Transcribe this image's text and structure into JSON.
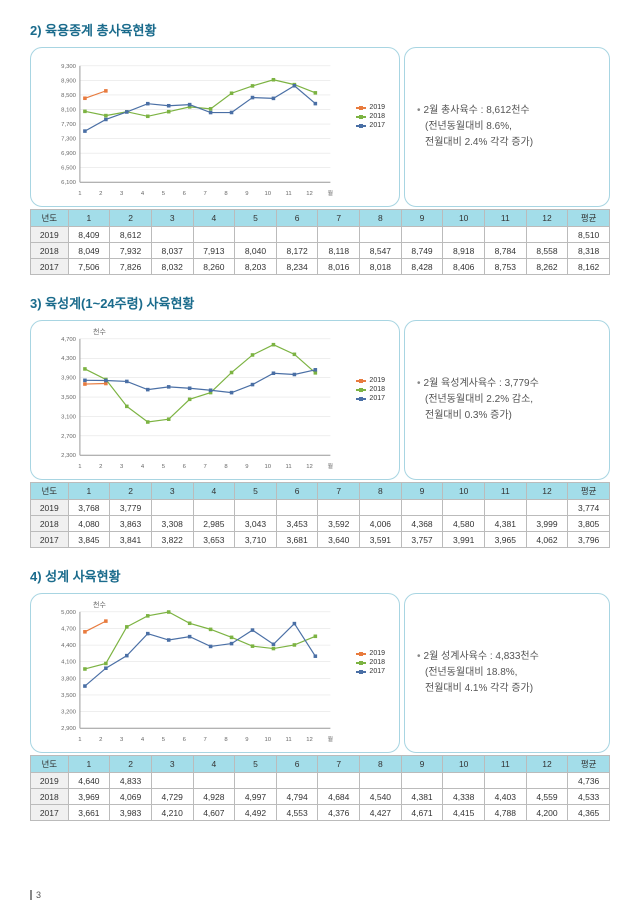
{
  "page_number": "3",
  "sections": [
    {
      "title": "2) 육용종계 총사육현황",
      "unit": "",
      "note": {
        "header": "2월 총사육수 : 8,612천수",
        "sub": "(전년동월대비 8.6%,\n전월대비 2.4% 각각 증가)"
      },
      "chart": {
        "ylim": [
          6100,
          9300
        ],
        "ystep": 400,
        "ylabels": [
          "6,100",
          "6,500",
          "6,900",
          "7,300",
          "7,700",
          "8,100",
          "8,500",
          "8,900",
          "9,300"
        ],
        "xlabels": [
          "1",
          "2",
          "3",
          "4",
          "5",
          "6",
          "7",
          "8",
          "9",
          "10",
          "11",
          "12",
          "월"
        ],
        "series": [
          {
            "year": "2019",
            "color": "#e87b3e",
            "values": [
              8409,
              8612
            ]
          },
          {
            "year": "2018",
            "color": "#7cb342",
            "values": [
              8049,
              7932,
              8037,
              7913,
              8040,
              8172,
              8118,
              8547,
              8749,
              8918,
              8784,
              8558
            ]
          },
          {
            "year": "2017",
            "color": "#4a6fa5",
            "values": [
              7506,
              7826,
              8032,
              8260,
              8203,
              8234,
              8016,
              8018,
              8428,
              8406,
              8753,
              8262
            ]
          }
        ]
      },
      "table": {
        "header": [
          "년도",
          "1",
          "2",
          "3",
          "4",
          "5",
          "6",
          "7",
          "8",
          "9",
          "10",
          "11",
          "12",
          "평균"
        ],
        "rows": [
          [
            "2019",
            "8,409",
            "8,612",
            "",
            "",
            "",
            "",
            "",
            "",
            "",
            "",
            "",
            "",
            "8,510"
          ],
          [
            "2018",
            "8,049",
            "7,932",
            "8,037",
            "7,913",
            "8,040",
            "8,172",
            "8,118",
            "8,547",
            "8,749",
            "8,918",
            "8,784",
            "8,558",
            "8,318"
          ],
          [
            "2017",
            "7,506",
            "7,826",
            "8,032",
            "8,260",
            "8,203",
            "8,234",
            "8,016",
            "8,018",
            "8,428",
            "8,406",
            "8,753",
            "8,262",
            "8,162"
          ]
        ]
      }
    },
    {
      "title": "3) 육성계(1~24주령) 사육현황",
      "unit": "천수",
      "note": {
        "header": "2월 육성계사육수 : 3,779수",
        "sub": "(전년동월대비 2.2% 감소,\n전월대비 0.3% 증가)"
      },
      "chart": {
        "ylim": [
          2300,
          4700
        ],
        "ystep": 400,
        "ylabels": [
          "2,300",
          "2,700",
          "3,100",
          "3,500",
          "3,900",
          "4,300",
          "4,700"
        ],
        "xlabels": [
          "1",
          "2",
          "3",
          "4",
          "5",
          "6",
          "7",
          "8",
          "9",
          "10",
          "11",
          "12",
          "월"
        ],
        "series": [
          {
            "year": "2019",
            "color": "#e87b3e",
            "values": [
              3768,
              3779
            ]
          },
          {
            "year": "2018",
            "color": "#7cb342",
            "values": [
              4080,
              3863,
              3308,
              2985,
              3043,
              3453,
              3592,
              4006,
              4368,
              4580,
              4381,
              3999
            ]
          },
          {
            "year": "2017",
            "color": "#4a6fa5",
            "values": [
              3845,
              3841,
              3822,
              3653,
              3710,
              3681,
              3640,
              3591,
              3757,
              3991,
              3965,
              4062
            ]
          }
        ]
      },
      "table": {
        "header": [
          "년도",
          "1",
          "2",
          "3",
          "4",
          "5",
          "6",
          "7",
          "8",
          "9",
          "10",
          "11",
          "12",
          "평균"
        ],
        "rows": [
          [
            "2019",
            "3,768",
            "3,779",
            "",
            "",
            "",
            "",
            "",
            "",
            "",
            "",
            "",
            "",
            "3,774"
          ],
          [
            "2018",
            "4,080",
            "3,863",
            "3,308",
            "2,985",
            "3,043",
            "3,453",
            "3,592",
            "4,006",
            "4,368",
            "4,580",
            "4,381",
            "3,999",
            "3,805"
          ],
          [
            "2017",
            "3,845",
            "3,841",
            "3,822",
            "3,653",
            "3,710",
            "3,681",
            "3,640",
            "3,591",
            "3,757",
            "3,991",
            "3,965",
            "4,062",
            "3,796"
          ]
        ]
      }
    },
    {
      "title": "4) 성계 사육현황",
      "unit": "천수",
      "note": {
        "header": "2월 성계사육수 : 4,833천수",
        "sub": "(전년동월대비 18.8%,\n전월대비 4.1% 각각 증가)"
      },
      "chart": {
        "ylim": [
          2900,
          5000
        ],
        "ystep": 300,
        "ylabels": [
          "2,900",
          "3,200",
          "3,500",
          "3,800",
          "4,100",
          "4,400",
          "4,700",
          "5,000"
        ],
        "xlabels": [
          "1",
          "2",
          "3",
          "4",
          "5",
          "6",
          "7",
          "8",
          "9",
          "10",
          "11",
          "12",
          "월"
        ],
        "series": [
          {
            "year": "2019",
            "color": "#e87b3e",
            "values": [
              4640,
              4833
            ]
          },
          {
            "year": "2018",
            "color": "#7cb342",
            "values": [
              3969,
              4069,
              4729,
              4928,
              4997,
              4794,
              4684,
              4540,
              4381,
              4338,
              4403,
              4559
            ]
          },
          {
            "year": "2017",
            "color": "#4a6fa5",
            "values": [
              3661,
              3983,
              4210,
              4607,
              4492,
              4553,
              4376,
              4427,
              4671,
              4415,
              4788,
              4200
            ]
          }
        ]
      },
      "table": {
        "header": [
          "년도",
          "1",
          "2",
          "3",
          "4",
          "5",
          "6",
          "7",
          "8",
          "9",
          "10",
          "11",
          "12",
          "평균"
        ],
        "rows": [
          [
            "2019",
            "4,640",
            "4,833",
            "",
            "",
            "",
            "",
            "",
            "",
            "",
            "",
            "",
            "",
            "4,736"
          ],
          [
            "2018",
            "3,969",
            "4,069",
            "4,729",
            "4,928",
            "4,997",
            "4,794",
            "4,684",
            "4,540",
            "4,381",
            "4,338",
            "4,403",
            "4,559",
            "4,533"
          ],
          [
            "2017",
            "3,661",
            "3,983",
            "4,210",
            "4,607",
            "4,492",
            "4,553",
            "4,376",
            "4,427",
            "4,671",
            "4,415",
            "4,788",
            "4,200",
            "4,365"
          ]
        ]
      }
    }
  ]
}
